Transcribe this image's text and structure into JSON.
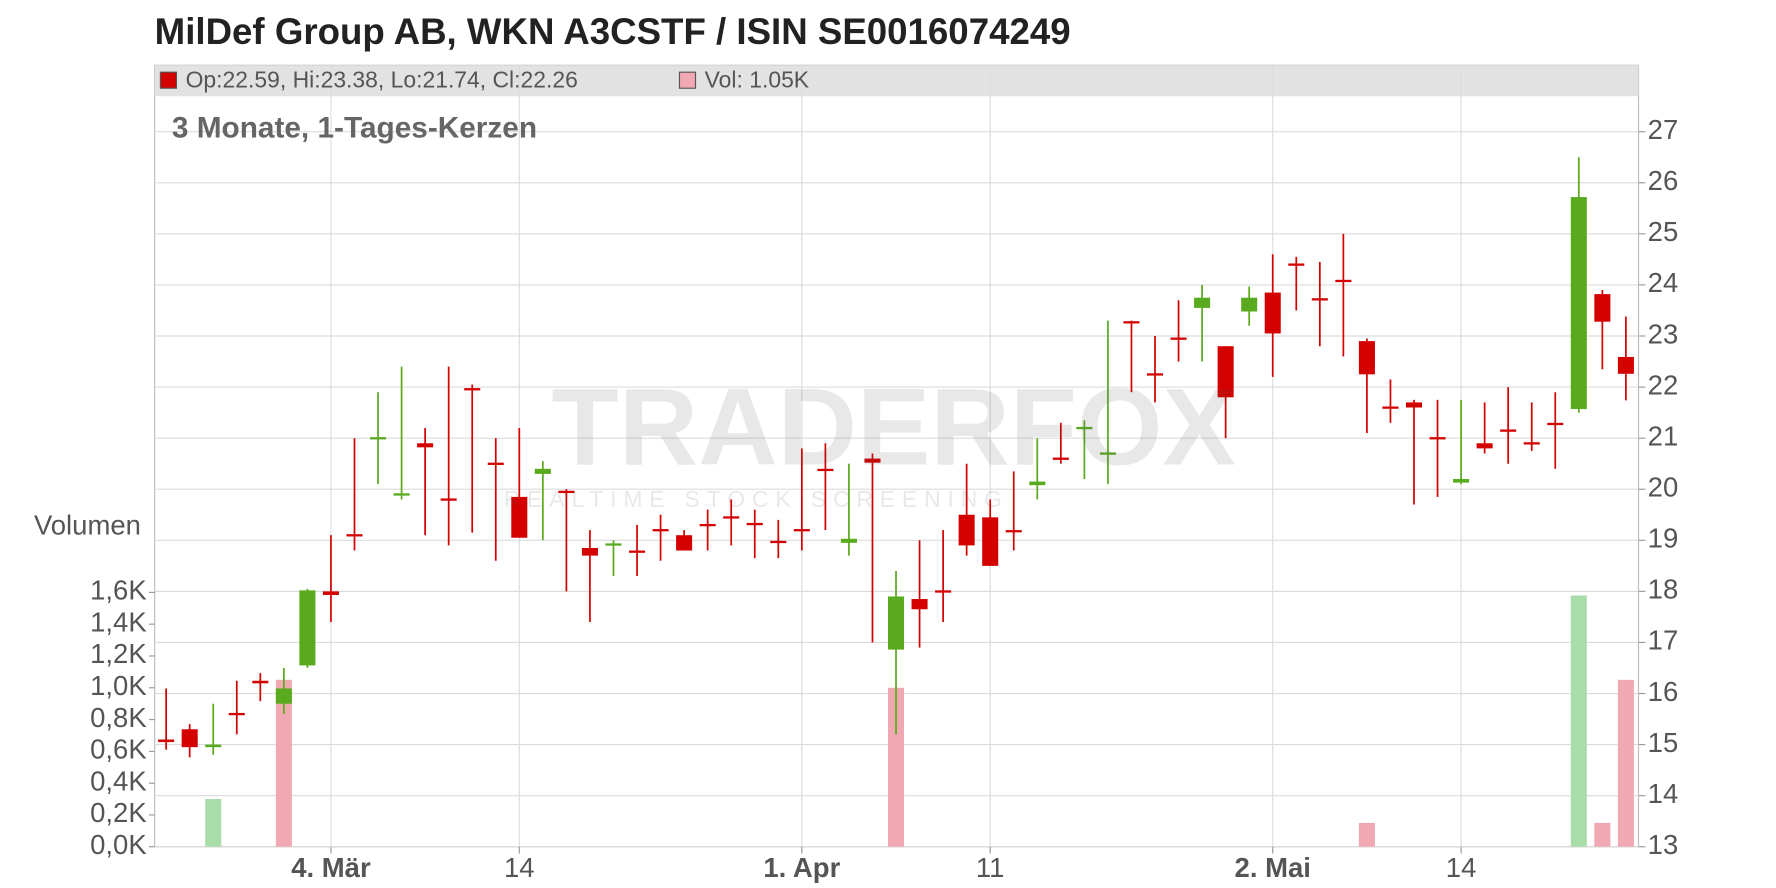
{
  "chart_data": {
    "type": "candlestick",
    "title": "MilDef Group AB, WKN A3CSTF / ISIN SE0016074249",
    "subtitle": "3 Monate, 1-Tages-Kerzen",
    "legend": [
      "Op:22.59, Hi:23.38, Lo:21.74, Cl:22.26",
      "Vol: 1.05K"
    ],
    "watermark": [
      "TRADERFOX",
      "REALTIME STOCK SCREENING"
    ],
    "up_color": "#5aaa1e",
    "down_color": "#d40000",
    "grid": true,
    "categories": [
      null,
      null,
      null,
      null,
      null,
      null,
      null,
      "4. Mär",
      null,
      null,
      null,
      null,
      null,
      null,
      null,
      "14",
      null,
      null,
      null,
      null,
      null,
      null,
      null,
      null,
      null,
      null,
      null,
      "1. Apr",
      null,
      null,
      null,
      null,
      null,
      null,
      null,
      "11",
      null,
      null,
      null,
      null,
      null,
      null,
      null,
      null,
      null,
      null,
      null,
      "2. Mai",
      null,
      null,
      null,
      null,
      null,
      null,
      null,
      "14",
      null,
      null,
      null,
      null,
      null,
      null,
      null
    ],
    "open": [
      15.1,
      15.3,
      14.95,
      15.62,
      16.25,
      15.8,
      16.55,
      18.0,
      19.12,
      20.98,
      19.88,
      20.9,
      19.82,
      21.98,
      20.52,
      19.85,
      20.3,
      19.97,
      18.85,
      18.9,
      18.8,
      19.22,
      19.1,
      19.32,
      19.47,
      19.34,
      18.99,
      19.22,
      20.4,
      18.95,
      20.6,
      16.86,
      17.85,
      18.02,
      19.5,
      19.45,
      19.2,
      20.08,
      20.62,
      21.18,
      20.68,
      23.29,
      22.27,
      22.97,
      23.55,
      22.8,
      23.48,
      23.85,
      24.42,
      23.74,
      24.1,
      22.9,
      21.62,
      21.7,
      21.02,
      20.13,
      20.9,
      21.17,
      20.92,
      21.3,
      21.57,
      23.82,
      22.59
    ],
    "high": [
      16.1,
      15.4,
      15.8,
      16.25,
      16.4,
      16.5,
      18.05,
      19.1,
      21.0,
      21.9,
      22.4,
      21.2,
      22.4,
      22.05,
      21.0,
      21.2,
      20.55,
      20.0,
      19.2,
      19.0,
      19.3,
      19.5,
      19.2,
      19.6,
      19.8,
      19.6,
      19.4,
      20.8,
      20.9,
      20.5,
      20.7,
      18.4,
      19.0,
      19.2,
      20.5,
      19.8,
      20.35,
      21.0,
      21.3,
      21.35,
      23.3,
      23.3,
      23.0,
      23.7,
      24.0,
      22.8,
      23.97,
      24.6,
      24.55,
      24.45,
      25.0,
      22.95,
      22.15,
      21.75,
      21.75,
      21.75,
      21.7,
      22.0,
      21.7,
      21.9,
      26.5,
      23.9,
      23.38
    ],
    "low": [
      14.9,
      14.75,
      14.8,
      15.2,
      15.85,
      15.6,
      16.5,
      17.4,
      18.8,
      20.1,
      19.8,
      19.1,
      18.9,
      19.15,
      18.6,
      19.05,
      19.0,
      18.0,
      17.4,
      18.3,
      18.3,
      18.6,
      18.8,
      18.8,
      18.9,
      18.65,
      18.65,
      18.8,
      19.2,
      18.7,
      17.0,
      15.2,
      16.9,
      17.4,
      18.7,
      18.5,
      18.8,
      19.8,
      20.5,
      20.2,
      20.1,
      21.9,
      21.7,
      22.5,
      22.5,
      21.0,
      23.2,
      22.2,
      23.5,
      22.8,
      22.6,
      21.1,
      21.3,
      19.7,
      19.85,
      20.1,
      20.7,
      20.5,
      20.75,
      20.4,
      21.5,
      22.35,
      21.74
    ],
    "close": [
      15.05,
      14.95,
      15.0,
      15.58,
      16.2,
      16.1,
      18.02,
      17.93,
      19.08,
      21.02,
      19.92,
      20.82,
      19.78,
      21.96,
      20.48,
      19.05,
      20.4,
      19.93,
      18.7,
      18.94,
      18.76,
      19.18,
      18.8,
      19.28,
      19.43,
      19.3,
      18.95,
      19.18,
      20.36,
      19.03,
      20.52,
      17.9,
      17.65,
      17.98,
      18.9,
      18.5,
      19.16,
      20.15,
      20.58,
      21.22,
      20.72,
      23.25,
      22.23,
      22.93,
      23.75,
      21.8,
      23.75,
      23.05,
      24.38,
      23.7,
      24.06,
      22.25,
      21.58,
      21.6,
      20.98,
      20.2,
      20.8,
      21.13,
      20.88,
      21.26,
      25.72,
      23.28,
      22.26
    ],
    "ylim": [
      13,
      28.3
    ],
    "yticks": [
      13,
      14,
      15,
      16,
      17,
      18,
      19,
      20,
      21,
      22,
      23,
      24,
      25,
      26,
      27
    ],
    "volume": {
      "label": "Volumen",
      "up_color": "#a8dca8",
      "down_color": "#f0a8b2",
      "values": [
        0,
        0,
        0.3,
        0,
        0,
        1.05,
        0,
        0,
        0,
        0,
        0,
        0,
        0,
        0,
        0,
        0,
        0,
        0,
        0,
        0,
        0,
        0,
        0,
        0,
        0,
        0,
        0,
        0,
        0,
        0,
        0,
        1.0,
        0,
        0,
        0,
        0,
        0,
        0,
        0,
        0,
        0,
        0,
        0,
        0,
        0,
        0,
        0,
        0,
        0,
        0,
        0,
        0.15,
        0,
        0,
        0,
        0,
        0,
        0,
        0,
        0,
        1.58,
        0.15,
        1.05
      ],
      "ylim": [
        0,
        1.6
      ],
      "yticks": [
        {
          "value": 0,
          "label": "0,0K"
        },
        {
          "value": 0.2,
          "label": "0,2K"
        },
        {
          "value": 0.4,
          "label": "0,4K"
        },
        {
          "value": 0.6,
          "label": "0,6K"
        },
        {
          "value": 0.8,
          "label": "0,8K"
        },
        {
          "value": 1.0,
          "label": "1,0K"
        },
        {
          "value": 1.2,
          "label": "1,2K"
        },
        {
          "value": 1.4,
          "label": "1,4K"
        },
        {
          "value": 1.6,
          "label": "1,6K"
        }
      ]
    }
  }
}
